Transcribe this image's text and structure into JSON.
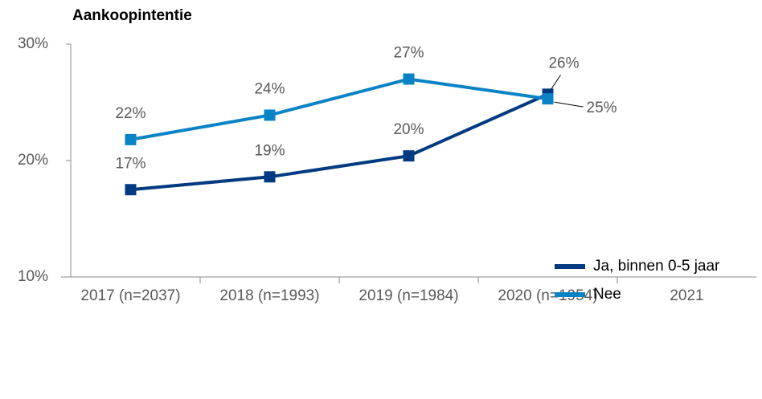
{
  "chart_data": {
    "type": "line",
    "title": "Aankoopintentie",
    "categories": [
      "2017 (n=2037)",
      "2018 (n=1993)",
      "2019 (n=1984)",
      "2020 (n=1954)",
      "2021"
    ],
    "series": [
      {
        "name": "Ja, binnen 0-5 jaar",
        "color": "#003a80",
        "values": [
          17.5,
          18.6,
          20.4,
          25.7,
          null
        ],
        "value_labels": [
          "17%",
          "19%",
          "20%",
          "26%",
          null
        ]
      },
      {
        "name": "Nee",
        "color": "#0a83c6",
        "values": [
          21.8,
          23.9,
          27.0,
          25.3,
          null
        ],
        "value_labels": [
          "22%",
          "24%",
          "27%",
          "25%",
          null
        ]
      }
    ],
    "ylim": [
      10,
      30
    ],
    "yticks": [
      {
        "value": 10,
        "label": "10%"
      },
      {
        "value": 20,
        "label": "20%"
      },
      {
        "value": 30,
        "label": "30%"
      }
    ],
    "legend": "right"
  }
}
